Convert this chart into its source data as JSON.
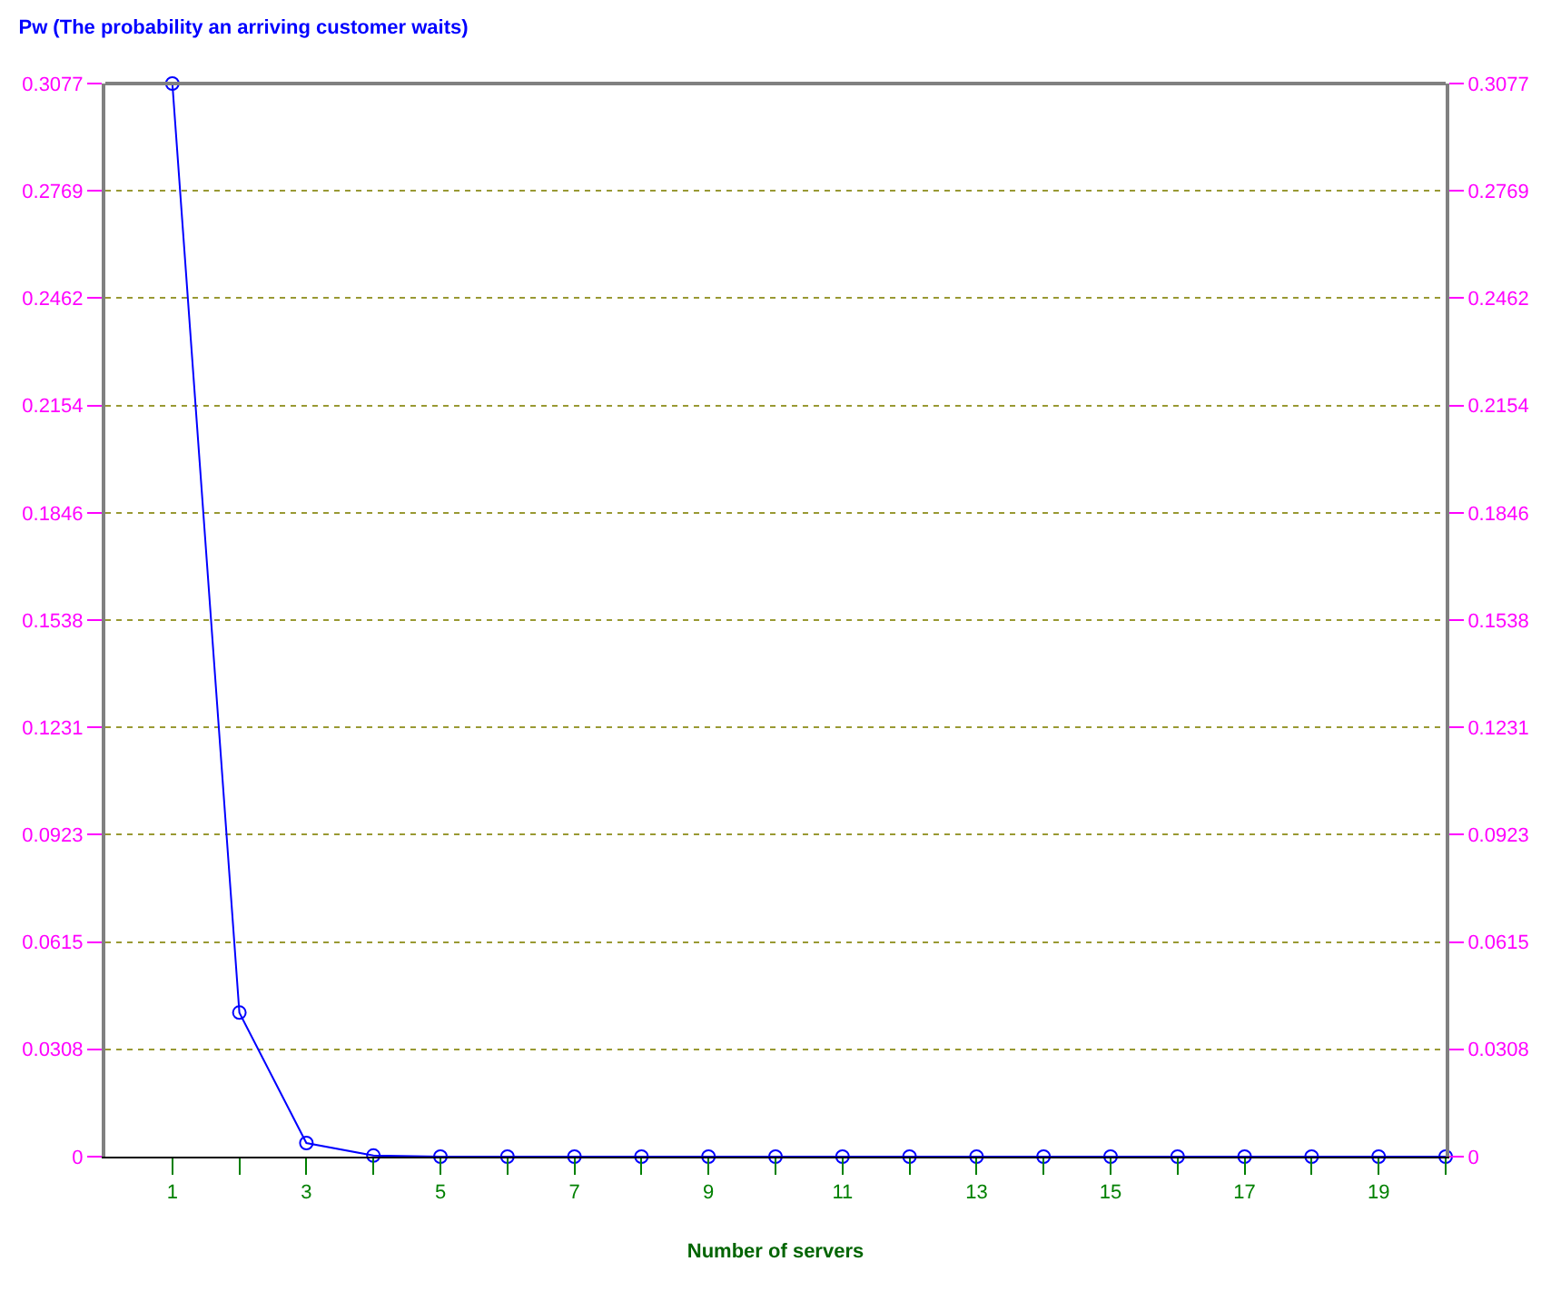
{
  "chart_data": {
    "type": "line",
    "title": "Pw (The probability an arriving customer waits)",
    "xlabel": "Number of servers",
    "x": [
      1,
      2,
      3,
      4,
      5,
      6,
      7,
      8,
      9,
      10,
      11,
      12,
      13,
      14,
      15,
      16,
      17,
      18,
      19,
      20
    ],
    "series": [
      {
        "color": "#0000ff",
        "values": [
          0.3077,
          0.0413,
          0.0039,
          0.0003,
          0,
          0,
          0,
          0,
          0,
          0,
          0,
          0,
          0,
          0,
          0,
          0,
          0,
          0,
          0,
          0
        ]
      }
    ],
    "xlim": [
      0,
      20
    ],
    "xticks": [
      1,
      {
        "value": 2,
        "label": null
      },
      3,
      {
        "value": 4,
        "label": null
      },
      5,
      {
        "value": 6,
        "label": null
      },
      7,
      {
        "value": 8,
        "label": null
      },
      9,
      {
        "value": 10,
        "label": null
      },
      11,
      {
        "value": 12,
        "label": null
      },
      13,
      {
        "value": 14,
        "label": null
      },
      15,
      {
        "value": 16,
        "label": null
      },
      17,
      {
        "value": 18,
        "label": null
      },
      19,
      {
        "value": 20,
        "label": null
      }
    ],
    "ylim": [
      0,
      0.3077
    ],
    "yticks": [
      0,
      0.0308,
      0.0615,
      0.0923,
      0.1231,
      0.1538,
      0.1846,
      0.2154,
      0.2462,
      0.2769,
      0.3077
    ],
    "y2lim": [
      0,
      0.3077
    ],
    "y2ticks": [
      0,
      0.0308,
      0.0615,
      0.0923,
      0.1231,
      0.1538,
      0.1846,
      0.2154,
      0.2462,
      0.2769,
      0.3077
    ],
    "grid": "y",
    "marker": "circle",
    "line_style": "solid",
    "legend": false
  }
}
